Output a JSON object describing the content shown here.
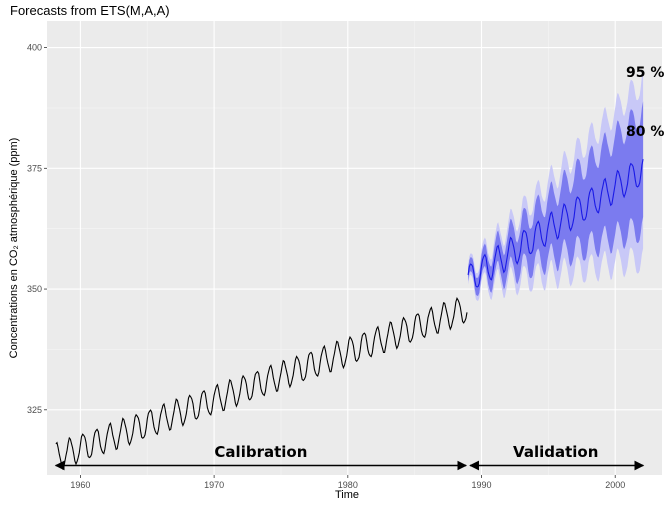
{
  "chart_data": {
    "type": "line",
    "title": "Forecasts from ETS(M,A,A)",
    "xlabel": "Time",
    "ylabel": "Concentrations en CO₂ atmosphérique (ppm)",
    "xlim": [
      1957.5,
      2003.5
    ],
    "ylim": [
      311.5,
      405.5
    ],
    "x_ticks": [
      1960,
      1970,
      1980,
      1990,
      2000
    ],
    "x_tick_labels": [
      "1960",
      "1970",
      "1980",
      "1990",
      "2000"
    ],
    "y_ticks": [
      325,
      350,
      375,
      400
    ],
    "y_tick_labels": [
      "325",
      "350",
      "375",
      "400"
    ],
    "grid": true,
    "series": [
      {
        "kind": "observed",
        "start": 1958.167,
        "frequency": 12,
        "trend_start": 315.2,
        "trend_slope_per_year": 1.0,
        "seasonal_amplitude": 2.8,
        "range": [
          1958.167,
          1989.0
        ],
        "color": "#000000"
      },
      {
        "kind": "forecast",
        "start": 1989.0,
        "frequency": 12,
        "trend_start": 352.0,
        "trend_slope_per_year": 1.73,
        "seasonal_amplitude": 3.0,
        "range": [
          1989.0,
          2002.1
        ],
        "color": "#1a1ae6"
      }
    ],
    "intervals": [
      {
        "level": "80 %",
        "halfwidth_start": 1.3,
        "halfwidth_end": 12.0,
        "color": "#7b7bef"
      },
      {
        "level": "95 %",
        "halfwidth_start": 2.0,
        "halfwidth_end": 18.5,
        "color": "#c8c8f7"
      }
    ],
    "annotations": {
      "pi_95": "95 %",
      "pi_80": "80 %",
      "calibration": "Calibration",
      "validation": "Validation",
      "calibration_range": [
        1958.0,
        1989.0
      ],
      "validation_range": [
        1989.0,
        2002.1
      ]
    },
    "colors": {
      "panel": "#ebebeb",
      "grid_major": "#ffffff",
      "arrow": "#000000"
    }
  }
}
